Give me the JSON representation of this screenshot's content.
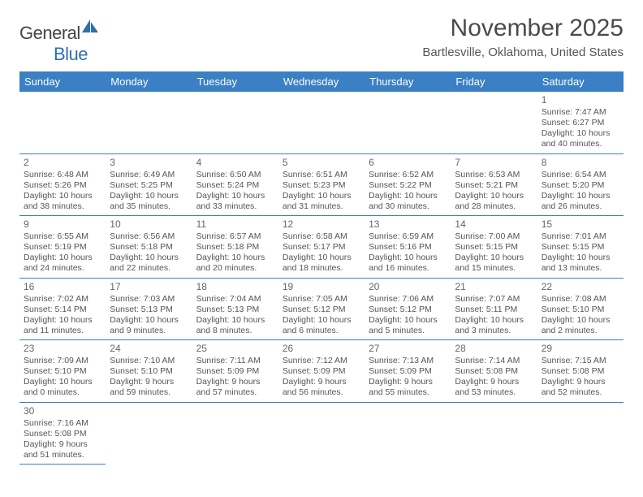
{
  "logo": {
    "part1": "General",
    "part2": "Blue"
  },
  "title": "November 2025",
  "location": "Bartlesville, Oklahoma, United States",
  "colors": {
    "header_bg": "#3b7fc4",
    "header_fg": "#ffffff",
    "divider": "#3b7fc4",
    "text": "#555555",
    "title": "#4a4a4a"
  },
  "day_headers": [
    "Sunday",
    "Monday",
    "Tuesday",
    "Wednesday",
    "Thursday",
    "Friday",
    "Saturday"
  ],
  "weeks": [
    [
      null,
      null,
      null,
      null,
      null,
      null,
      {
        "n": "1",
        "sr": "Sunrise: 7:47 AM",
        "ss": "Sunset: 6:27 PM",
        "dl": "Daylight: 10 hours and 40 minutes."
      }
    ],
    [
      {
        "n": "2",
        "sr": "Sunrise: 6:48 AM",
        "ss": "Sunset: 5:26 PM",
        "dl": "Daylight: 10 hours and 38 minutes."
      },
      {
        "n": "3",
        "sr": "Sunrise: 6:49 AM",
        "ss": "Sunset: 5:25 PM",
        "dl": "Daylight: 10 hours and 35 minutes."
      },
      {
        "n": "4",
        "sr": "Sunrise: 6:50 AM",
        "ss": "Sunset: 5:24 PM",
        "dl": "Daylight: 10 hours and 33 minutes."
      },
      {
        "n": "5",
        "sr": "Sunrise: 6:51 AM",
        "ss": "Sunset: 5:23 PM",
        "dl": "Daylight: 10 hours and 31 minutes."
      },
      {
        "n": "6",
        "sr": "Sunrise: 6:52 AM",
        "ss": "Sunset: 5:22 PM",
        "dl": "Daylight: 10 hours and 30 minutes."
      },
      {
        "n": "7",
        "sr": "Sunrise: 6:53 AM",
        "ss": "Sunset: 5:21 PM",
        "dl": "Daylight: 10 hours and 28 minutes."
      },
      {
        "n": "8",
        "sr": "Sunrise: 6:54 AM",
        "ss": "Sunset: 5:20 PM",
        "dl": "Daylight: 10 hours and 26 minutes."
      }
    ],
    [
      {
        "n": "9",
        "sr": "Sunrise: 6:55 AM",
        "ss": "Sunset: 5:19 PM",
        "dl": "Daylight: 10 hours and 24 minutes."
      },
      {
        "n": "10",
        "sr": "Sunrise: 6:56 AM",
        "ss": "Sunset: 5:18 PM",
        "dl": "Daylight: 10 hours and 22 minutes."
      },
      {
        "n": "11",
        "sr": "Sunrise: 6:57 AM",
        "ss": "Sunset: 5:18 PM",
        "dl": "Daylight: 10 hours and 20 minutes."
      },
      {
        "n": "12",
        "sr": "Sunrise: 6:58 AM",
        "ss": "Sunset: 5:17 PM",
        "dl": "Daylight: 10 hours and 18 minutes."
      },
      {
        "n": "13",
        "sr": "Sunrise: 6:59 AM",
        "ss": "Sunset: 5:16 PM",
        "dl": "Daylight: 10 hours and 16 minutes."
      },
      {
        "n": "14",
        "sr": "Sunrise: 7:00 AM",
        "ss": "Sunset: 5:15 PM",
        "dl": "Daylight: 10 hours and 15 minutes."
      },
      {
        "n": "15",
        "sr": "Sunrise: 7:01 AM",
        "ss": "Sunset: 5:15 PM",
        "dl": "Daylight: 10 hours and 13 minutes."
      }
    ],
    [
      {
        "n": "16",
        "sr": "Sunrise: 7:02 AM",
        "ss": "Sunset: 5:14 PM",
        "dl": "Daylight: 10 hours and 11 minutes."
      },
      {
        "n": "17",
        "sr": "Sunrise: 7:03 AM",
        "ss": "Sunset: 5:13 PM",
        "dl": "Daylight: 10 hours and 9 minutes."
      },
      {
        "n": "18",
        "sr": "Sunrise: 7:04 AM",
        "ss": "Sunset: 5:13 PM",
        "dl": "Daylight: 10 hours and 8 minutes."
      },
      {
        "n": "19",
        "sr": "Sunrise: 7:05 AM",
        "ss": "Sunset: 5:12 PM",
        "dl": "Daylight: 10 hours and 6 minutes."
      },
      {
        "n": "20",
        "sr": "Sunrise: 7:06 AM",
        "ss": "Sunset: 5:12 PM",
        "dl": "Daylight: 10 hours and 5 minutes."
      },
      {
        "n": "21",
        "sr": "Sunrise: 7:07 AM",
        "ss": "Sunset: 5:11 PM",
        "dl": "Daylight: 10 hours and 3 minutes."
      },
      {
        "n": "22",
        "sr": "Sunrise: 7:08 AM",
        "ss": "Sunset: 5:10 PM",
        "dl": "Daylight: 10 hours and 2 minutes."
      }
    ],
    [
      {
        "n": "23",
        "sr": "Sunrise: 7:09 AM",
        "ss": "Sunset: 5:10 PM",
        "dl": "Daylight: 10 hours and 0 minutes."
      },
      {
        "n": "24",
        "sr": "Sunrise: 7:10 AM",
        "ss": "Sunset: 5:10 PM",
        "dl": "Daylight: 9 hours and 59 minutes."
      },
      {
        "n": "25",
        "sr": "Sunrise: 7:11 AM",
        "ss": "Sunset: 5:09 PM",
        "dl": "Daylight: 9 hours and 57 minutes."
      },
      {
        "n": "26",
        "sr": "Sunrise: 7:12 AM",
        "ss": "Sunset: 5:09 PM",
        "dl": "Daylight: 9 hours and 56 minutes."
      },
      {
        "n": "27",
        "sr": "Sunrise: 7:13 AM",
        "ss": "Sunset: 5:09 PM",
        "dl": "Daylight: 9 hours and 55 minutes."
      },
      {
        "n": "28",
        "sr": "Sunrise: 7:14 AM",
        "ss": "Sunset: 5:08 PM",
        "dl": "Daylight: 9 hours and 53 minutes."
      },
      {
        "n": "29",
        "sr": "Sunrise: 7:15 AM",
        "ss": "Sunset: 5:08 PM",
        "dl": "Daylight: 9 hours and 52 minutes."
      }
    ],
    [
      {
        "n": "30",
        "sr": "Sunrise: 7:16 AM",
        "ss": "Sunset: 5:08 PM",
        "dl": "Daylight: 9 hours and 51 minutes."
      },
      null,
      null,
      null,
      null,
      null,
      null
    ]
  ]
}
